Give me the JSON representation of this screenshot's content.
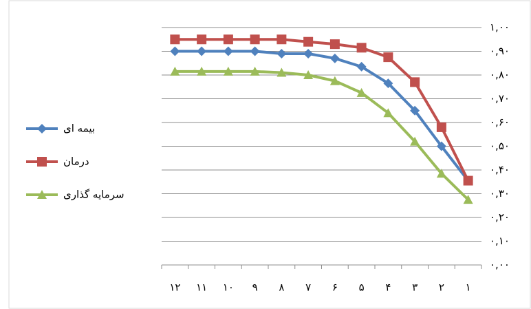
{
  "chart_data": {
    "type": "line",
    "categories": [
      "۱۲",
      "۱۱",
      "۱۰",
      "۹",
      "۸",
      "۷",
      "۶",
      "۵",
      "۴",
      "۳",
      "۲",
      "۱"
    ],
    "series": [
      {
        "name": "بیمه ای",
        "color": "#4f81bd",
        "marker": "diamond",
        "values": [
          0.9,
          0.9,
          0.9,
          0.9,
          0.89,
          0.89,
          0.87,
          0.835,
          0.765,
          0.65,
          0.5,
          0.355
        ]
      },
      {
        "name": "درمان",
        "color": "#c0504d",
        "marker": "square",
        "values": [
          0.95,
          0.95,
          0.95,
          0.95,
          0.95,
          0.94,
          0.93,
          0.915,
          0.875,
          0.77,
          0.58,
          0.355
        ]
      },
      {
        "name": "سرمایه گذاری",
        "color": "#9bbb59",
        "marker": "triangle",
        "values": [
          0.815,
          0.815,
          0.815,
          0.815,
          0.81,
          0.8,
          0.775,
          0.725,
          0.64,
          0.52,
          0.385,
          0.275
        ]
      }
    ],
    "ylim": [
      0,
      1
    ],
    "yticks": [
      {
        "value": 0,
        "label": "۰,۰۰"
      },
      {
        "value": 0.1,
        "label": "۰,۱۰"
      },
      {
        "value": 0.2,
        "label": "۰,۲۰"
      },
      {
        "value": 0.3,
        "label": "۰,۳۰"
      },
      {
        "value": 0.4,
        "label": "۰,۴۰"
      },
      {
        "value": 0.5,
        "label": "۰,۵۰"
      },
      {
        "value": 0.6,
        "label": "۰,۶۰"
      },
      {
        "value": 0.7,
        "label": "۰,۷۰"
      },
      {
        "value": 0.8,
        "label": "۰,۸۰"
      },
      {
        "value": 0.9,
        "label": "۰,۹۰"
      },
      {
        "value": 1,
        "label": "۱,۰۰"
      }
    ],
    "grid": true,
    "legend": "left"
  }
}
